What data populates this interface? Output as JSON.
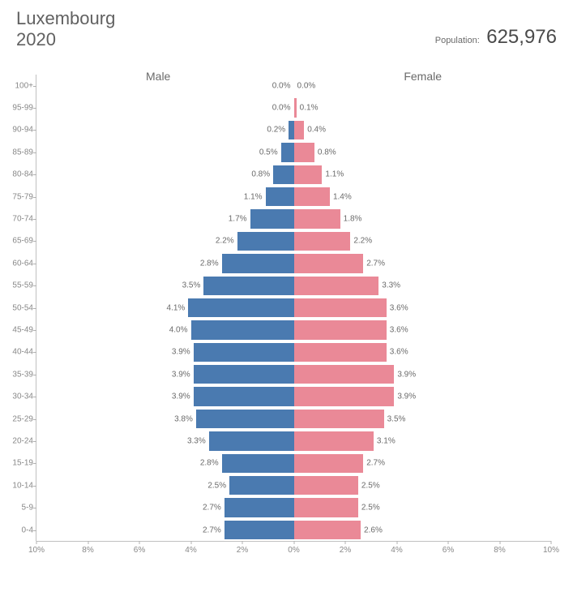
{
  "title": {
    "country": "Luxembourg",
    "year": "2020"
  },
  "population": {
    "label": "Population:",
    "value": "625,976"
  },
  "chart": {
    "type": "population-pyramid",
    "male_label": "Male",
    "female_label": "Female",
    "male_color": "#4a7ab0",
    "female_color": "#ea8997",
    "background_color": "#ffffff",
    "text_color": "#6a6a6a",
    "axis_color": "#c0c0c0",
    "max_pct": 10,
    "x_ticks": [
      {
        "pos": -10,
        "label": "10%"
      },
      {
        "pos": -8,
        "label": "8%"
      },
      {
        "pos": -6,
        "label": "6%"
      },
      {
        "pos": -4,
        "label": "4%"
      },
      {
        "pos": -2,
        "label": "2%"
      },
      {
        "pos": 0,
        "label": "0%"
      },
      {
        "pos": 2,
        "label": "2%"
      },
      {
        "pos": 4,
        "label": "4%"
      },
      {
        "pos": 6,
        "label": "6%"
      },
      {
        "pos": 8,
        "label": "8%"
      },
      {
        "pos": 10,
        "label": "10%"
      }
    ],
    "rows": [
      {
        "age": "100+",
        "male": 0.0,
        "female": 0.0,
        "male_s": "0.0%",
        "female_s": "0.0%"
      },
      {
        "age": "95-99",
        "male": 0.0,
        "female": 0.1,
        "male_s": "0.0%",
        "female_s": "0.1%"
      },
      {
        "age": "90-94",
        "male": 0.2,
        "female": 0.4,
        "male_s": "0.2%",
        "female_s": "0.4%"
      },
      {
        "age": "85-89",
        "male": 0.5,
        "female": 0.8,
        "male_s": "0.5%",
        "female_s": "0.8%"
      },
      {
        "age": "80-84",
        "male": 0.8,
        "female": 1.1,
        "male_s": "0.8%",
        "female_s": "1.1%"
      },
      {
        "age": "75-79",
        "male": 1.1,
        "female": 1.4,
        "male_s": "1.1%",
        "female_s": "1.4%"
      },
      {
        "age": "70-74",
        "male": 1.7,
        "female": 1.8,
        "male_s": "1.7%",
        "female_s": "1.8%"
      },
      {
        "age": "65-69",
        "male": 2.2,
        "female": 2.2,
        "male_s": "2.2%",
        "female_s": "2.2%"
      },
      {
        "age": "60-64",
        "male": 2.8,
        "female": 2.7,
        "male_s": "2.8%",
        "female_s": "2.7%"
      },
      {
        "age": "55-59",
        "male": 3.5,
        "female": 3.3,
        "male_s": "3.5%",
        "female_s": "3.3%"
      },
      {
        "age": "50-54",
        "male": 4.1,
        "female": 3.6,
        "male_s": "4.1%",
        "female_s": "3.6%"
      },
      {
        "age": "45-49",
        "male": 4.0,
        "female": 3.6,
        "male_s": "4.0%",
        "female_s": "3.6%"
      },
      {
        "age": "40-44",
        "male": 3.9,
        "female": 3.6,
        "male_s": "3.9%",
        "female_s": "3.6%"
      },
      {
        "age": "35-39",
        "male": 3.9,
        "female": 3.9,
        "male_s": "3.9%",
        "female_s": "3.9%"
      },
      {
        "age": "30-34",
        "male": 3.9,
        "female": 3.9,
        "male_s": "3.9%",
        "female_s": "3.9%"
      },
      {
        "age": "25-29",
        "male": 3.8,
        "female": 3.5,
        "male_s": "3.8%",
        "female_s": "3.5%"
      },
      {
        "age": "20-24",
        "male": 3.3,
        "female": 3.1,
        "male_s": "3.3%",
        "female_s": "3.1%"
      },
      {
        "age": "15-19",
        "male": 2.8,
        "female": 2.7,
        "male_s": "2.8%",
        "female_s": "2.7%"
      },
      {
        "age": "10-14",
        "male": 2.5,
        "female": 2.5,
        "male_s": "2.5%",
        "female_s": "2.5%"
      },
      {
        "age": "5-9",
        "male": 2.7,
        "female": 2.5,
        "male_s": "2.7%",
        "female_s": "2.5%"
      },
      {
        "age": "0-4",
        "male": 2.7,
        "female": 2.6,
        "male_s": "2.7%",
        "female_s": "2.6%"
      }
    ]
  }
}
